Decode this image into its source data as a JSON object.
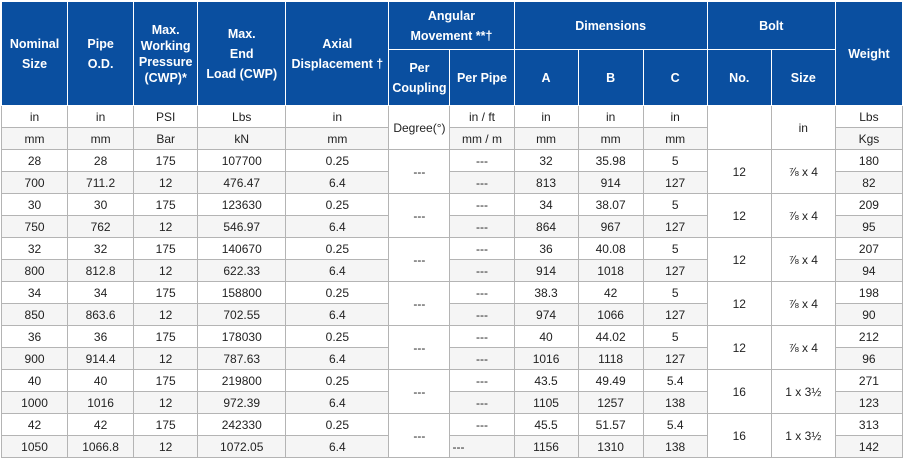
{
  "headers": {
    "nominal_size": [
      "Nominal",
      "Size"
    ],
    "pipe_od": [
      "Pipe",
      "O.D."
    ],
    "max_working_pressure": [
      "Max.",
      "Working",
      "Pressure",
      "(CWP)*"
    ],
    "max_end_load": [
      "Max.",
      "End",
      "Load (CWP)"
    ],
    "axial_displacement": [
      "Axial",
      "Displacement †"
    ],
    "angular_movement": [
      "Angular",
      "Movement **†"
    ],
    "per_coupling": [
      "Per",
      "Coupling"
    ],
    "per_pipe": "Per Pipe",
    "dimensions": "Dimensions",
    "dim_a": "A",
    "dim_b": "B",
    "dim_c": "C",
    "bolt": "Bolt",
    "bolt_no": "No.",
    "bolt_size": "Size",
    "weight": "Weight"
  },
  "units_imperial": {
    "nominal_size": "in",
    "pipe_od": "in",
    "pressure": "PSI",
    "end_load": "Lbs",
    "axial": "in",
    "per_pipe": "in / ft",
    "a": "in",
    "b": "in",
    "c": "in",
    "bolt_size": "in",
    "weight": "Lbs"
  },
  "units_metric": {
    "nominal_size": "mm",
    "pipe_od": "mm",
    "pressure": "Bar",
    "end_load": "kN",
    "axial": "mm",
    "per_pipe": "mm / m",
    "a": "mm",
    "b": "mm",
    "c": "mm",
    "weight": "Kgs"
  },
  "degree_label": "Degree(°)",
  "rows": [
    {
      "imperial": {
        "size": "28",
        "od": "28",
        "pressure": "175",
        "load": "107700",
        "axial": "0.25",
        "per_pipe": "---",
        "a": "32",
        "b": "35.98",
        "c": "5",
        "weight": "180"
      },
      "metric": {
        "size": "700",
        "od": "711.2",
        "pressure": "12",
        "load": "476.47",
        "axial": "6.4",
        "per_pipe": "---",
        "a": "813",
        "b": "914",
        "c": "127",
        "weight": "82"
      },
      "per_coupling": "---",
      "bolt_no": "12",
      "bolt_size": "⅞ x 4"
    },
    {
      "imperial": {
        "size": "30",
        "od": "30",
        "pressure": "175",
        "load": "123630",
        "axial": "0.25",
        "per_pipe": "---",
        "a": "34",
        "b": "38.07",
        "c": "5",
        "weight": "209"
      },
      "metric": {
        "size": "750",
        "od": "762",
        "pressure": "12",
        "load": "546.97",
        "axial": "6.4",
        "per_pipe": "---",
        "a": "864",
        "b": "967",
        "c": "127",
        "weight": "95"
      },
      "per_coupling": "---",
      "bolt_no": "12",
      "bolt_size": "⅞ x 4"
    },
    {
      "imperial": {
        "size": "32",
        "od": "32",
        "pressure": "175",
        "load": "140670",
        "axial": "0.25",
        "per_pipe": "---",
        "a": "36",
        "b": "40.08",
        "c": "5",
        "weight": "207"
      },
      "metric": {
        "size": "800",
        "od": "812.8",
        "pressure": "12",
        "load": "622.33",
        "axial": "6.4",
        "per_pipe": "---",
        "a": "914",
        "b": "1018",
        "c": "127",
        "weight": "94"
      },
      "per_coupling": "---",
      "bolt_no": "12",
      "bolt_size": "⅞ x 4"
    },
    {
      "imperial": {
        "size": "34",
        "od": "34",
        "pressure": "175",
        "load": "158800",
        "axial": "0.25",
        "per_pipe": "---",
        "a": "38.3",
        "b": "42",
        "c": "5",
        "weight": "198"
      },
      "metric": {
        "size": "850",
        "od": "863.6",
        "pressure": "12",
        "load": "702.55",
        "axial": "6.4",
        "per_pipe": "---",
        "a": "974",
        "b": "1066",
        "c": "127",
        "weight": "90"
      },
      "per_coupling": "---",
      "bolt_no": "12",
      "bolt_size": "⅞ x 4"
    },
    {
      "imperial": {
        "size": "36",
        "od": "36",
        "pressure": "175",
        "load": "178030",
        "axial": "0.25",
        "per_pipe": "---",
        "a": "40",
        "b": "44.02",
        "c": "5",
        "weight": "212"
      },
      "metric": {
        "size": "900",
        "od": "914.4",
        "pressure": "12",
        "load": "787.63",
        "axial": "6.4",
        "per_pipe": "---",
        "a": "1016",
        "b": "1118",
        "c": "127",
        "weight": "96"
      },
      "per_coupling": "---",
      "bolt_no": "12",
      "bolt_size": "⅞ x 4"
    },
    {
      "imperial": {
        "size": "40",
        "od": "40",
        "pressure": "175",
        "load": "219800",
        "axial": "0.25",
        "per_pipe": "---",
        "a": "43.5",
        "b": "49.49",
        "c": "5.4",
        "weight": "271"
      },
      "metric": {
        "size": "1000",
        "od": "1016",
        "pressure": "12",
        "load": "972.39",
        "axial": "6.4",
        "per_pipe": "---",
        "a": "1105",
        "b": "1257",
        "c": "138",
        "weight": "123"
      },
      "per_coupling": "---",
      "bolt_no": "16",
      "bolt_size": "1 x 3½"
    },
    {
      "imperial": {
        "size": "42",
        "od": "42",
        "pressure": "175",
        "load": "242330",
        "axial": "0.25",
        "per_pipe": "---",
        "a": "45.5",
        "b": "51.57",
        "c": "5.4",
        "weight": "313"
      },
      "metric": {
        "size": "1050",
        "od": "1066.8",
        "pressure": "12",
        "load": "1072.05",
        "axial": "6.4",
        "per_pipe": "---",
        "a": "1156",
        "b": "1310",
        "c": "138",
        "weight": "142"
      },
      "per_coupling": "---",
      "bolt_no": "16",
      "bolt_size": "1 x 3½"
    }
  ]
}
